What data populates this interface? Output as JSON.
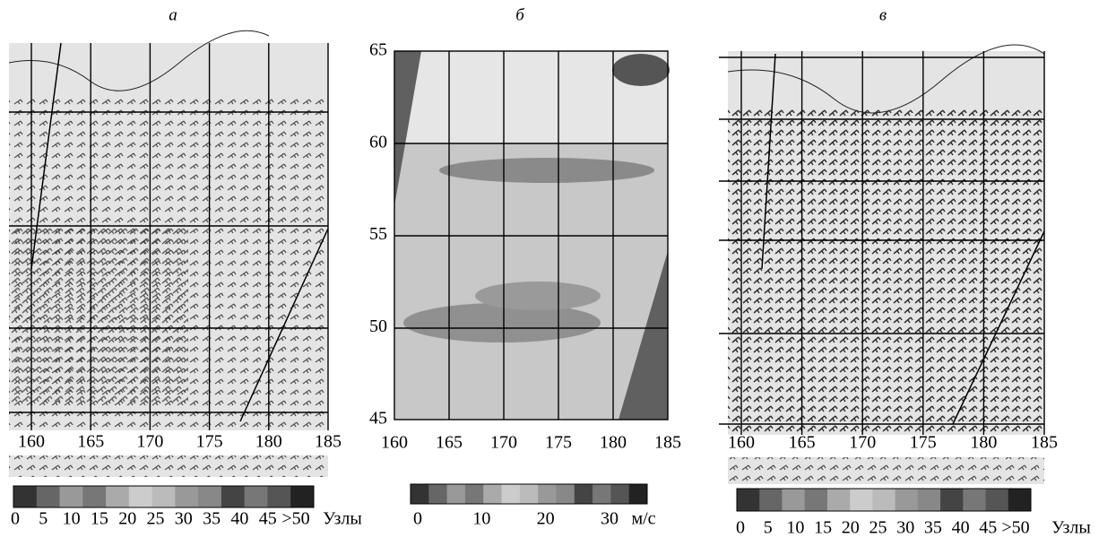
{
  "panels": [
    {
      "label": "а",
      "x_ticks": [
        160,
        165,
        170,
        175,
        180,
        185
      ],
      "colorbar_ticks": [
        "0",
        "5",
        "10",
        "15",
        "20",
        "25",
        "30",
        "35",
        "40",
        "45",
        ">50"
      ],
      "unit": "Узлы"
    },
    {
      "label": "б",
      "y_ticks": [
        65,
        60,
        55,
        50,
        45
      ],
      "x_ticks": [
        160,
        165,
        170,
        175,
        180,
        185
      ],
      "colorbar_ticks": [
        "0",
        "10",
        "20",
        "30"
      ],
      "unit": "м/с"
    },
    {
      "label": "в",
      "x_ticks": [
        160,
        165,
        170,
        175,
        180,
        185
      ],
      "colorbar_ticks": [
        "0",
        "5",
        "10",
        "15",
        "20",
        "25",
        "30",
        "35",
        "40",
        "45",
        ">50"
      ],
      "unit": "Узлы"
    }
  ]
}
